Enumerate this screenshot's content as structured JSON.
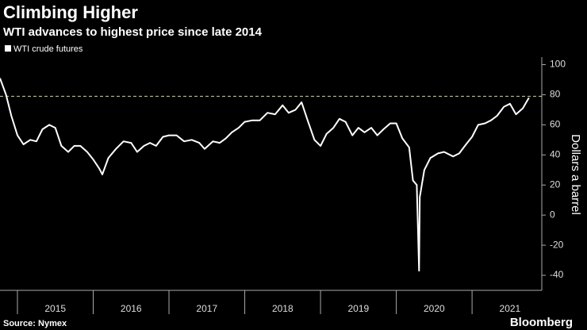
{
  "chart_data": {
    "type": "line",
    "title": "Climbing Higher",
    "subtitle": "WTI advances to highest price since late 2014",
    "y_axis_label": "Dollars a barrel",
    "source": "Source: Nymex",
    "brand": "Bloomberg",
    "x": [
      2014.77,
      2014.85,
      2014.92,
      2015.0,
      2015.08,
      2015.17,
      2015.25,
      2015.33,
      2015.42,
      2015.5,
      2015.58,
      2015.67,
      2015.75,
      2015.83,
      2015.92,
      2016.0,
      2016.08,
      2016.12,
      2016.2,
      2016.3,
      2016.4,
      2016.5,
      2016.58,
      2016.67,
      2016.75,
      2016.83,
      2016.92,
      2017.0,
      2017.1,
      2017.2,
      2017.3,
      2017.4,
      2017.47,
      2017.58,
      2017.67,
      2017.75,
      2017.83,
      2017.92,
      2018.0,
      2018.1,
      2018.2,
      2018.3,
      2018.4,
      2018.5,
      2018.58,
      2018.67,
      2018.75,
      2018.83,
      2018.92,
      2019.0,
      2019.08,
      2019.17,
      2019.25,
      2019.33,
      2019.42,
      2019.5,
      2019.58,
      2019.67,
      2019.75,
      2019.83,
      2019.92,
      2020.0,
      2020.08,
      2020.17,
      2020.22,
      2020.27,
      2020.3,
      2020.31,
      2020.37,
      2020.45,
      2020.55,
      2020.63,
      2020.75,
      2020.83,
      2020.92,
      2021.0,
      2021.08,
      2021.17,
      2021.25,
      2021.33,
      2021.42,
      2021.5,
      2021.58,
      2021.67,
      2021.75
    ],
    "series": [
      {
        "name": "WTI crude futures",
        "color": "#ffffff",
        "values": [
          91,
          80,
          66,
          53,
          47,
          50,
          49,
          57,
          60,
          58,
          46,
          42,
          46,
          46,
          42,
          37,
          31,
          27,
          38,
          44,
          49,
          48,
          42,
          46,
          48,
          46,
          52,
          53,
          53,
          49,
          50,
          48,
          44,
          49,
          48,
          51,
          55,
          58,
          62,
          63,
          63,
          68,
          67,
          73,
          68,
          70,
          75,
          63,
          50,
          46,
          54,
          58,
          64,
          62,
          53,
          58,
          55,
          58,
          53,
          57,
          61,
          61,
          51,
          45,
          23,
          20,
          -37,
          12,
          30,
          38,
          41,
          42,
          39,
          41,
          47,
          52,
          60,
          61,
          63,
          66,
          72,
          74,
          67,
          71,
          78
        ]
      }
    ],
    "reference_line": 79,
    "xlim": [
      2014.77,
      2021.92
    ],
    "xticks": [
      2015,
      2016,
      2017,
      2018,
      2019,
      2020,
      2021
    ],
    "ylim": [
      -50,
      105
    ],
    "yticks": [
      100,
      80,
      60,
      40,
      20,
      0,
      -20,
      -40
    ],
    "grid": false
  }
}
